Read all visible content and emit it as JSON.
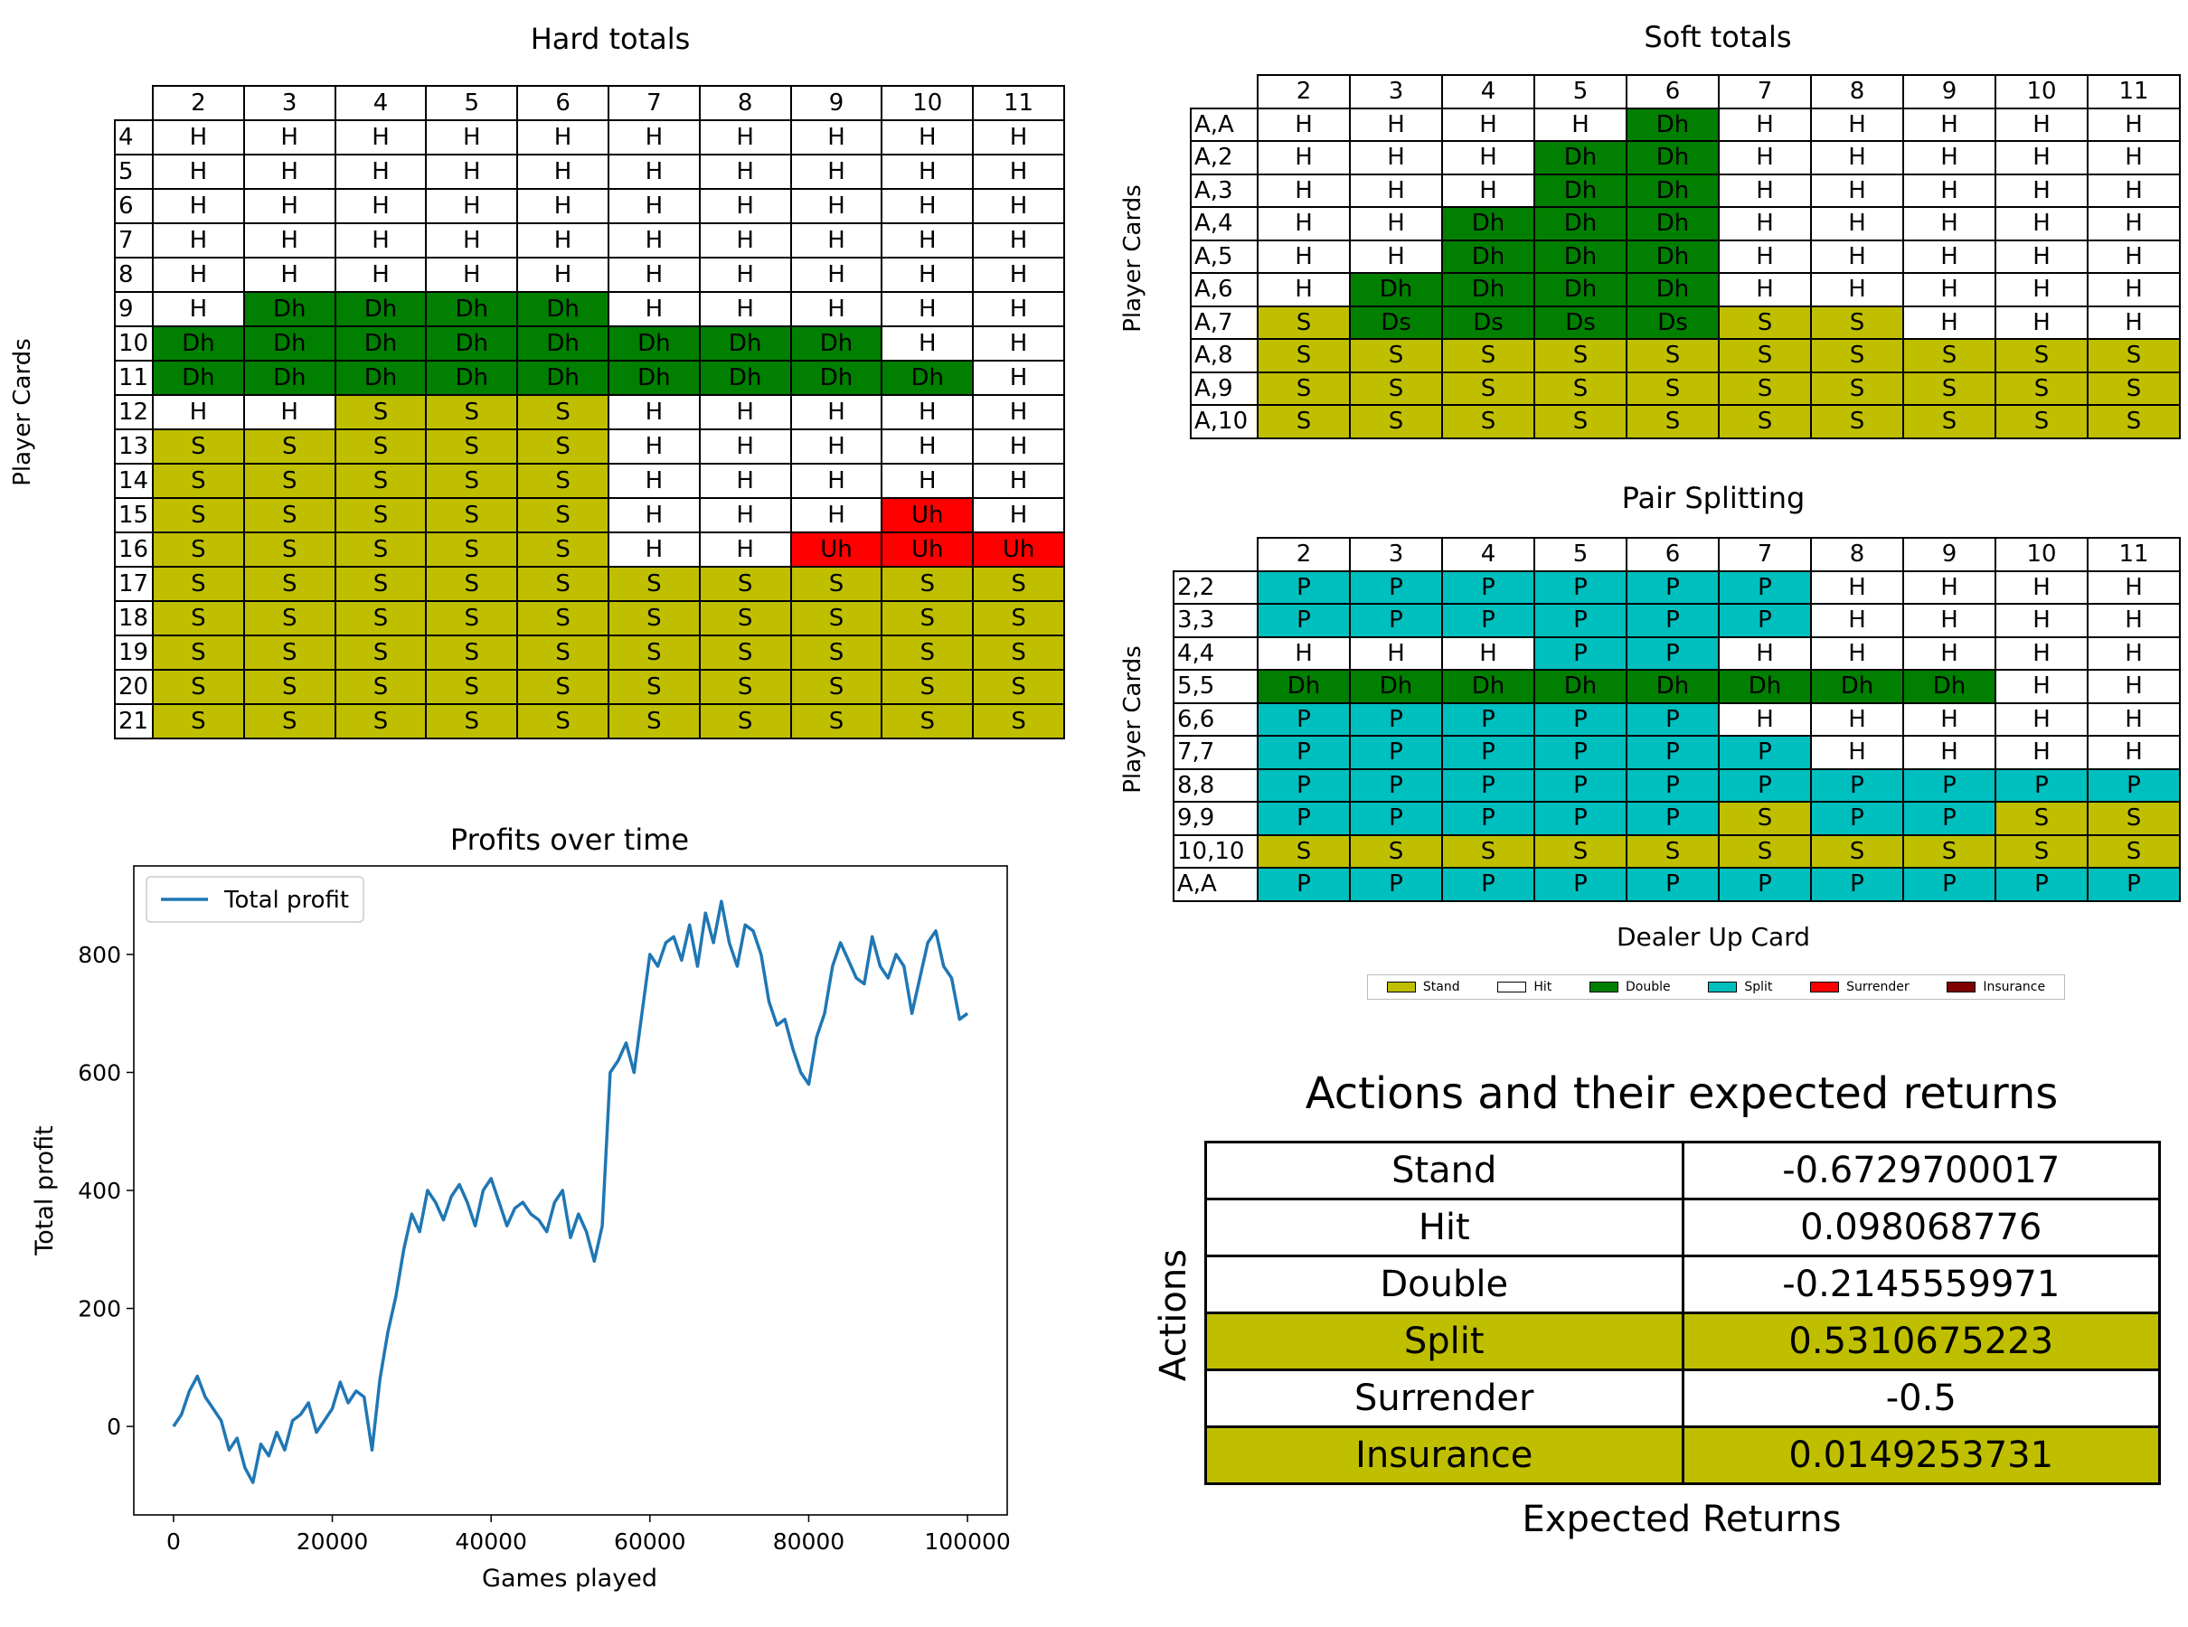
{
  "colors": {
    "S": "#bfbf00",
    "H": "#ffffff",
    "D": "#007f00",
    "P": "#00bfbf",
    "U": "#ff0000",
    "I": "#7f0000",
    "line": "#1f77b4"
  },
  "hard_totals": {
    "title": "Hard totals",
    "ylabel": "Player Cards",
    "columns": [
      "2",
      "3",
      "4",
      "5",
      "6",
      "7",
      "8",
      "9",
      "10",
      "11"
    ],
    "rows": [
      {
        "label": "4",
        "cells": [
          "H",
          "H",
          "H",
          "H",
          "H",
          "H",
          "H",
          "H",
          "H",
          "H"
        ]
      },
      {
        "label": "5",
        "cells": [
          "H",
          "H",
          "H",
          "H",
          "H",
          "H",
          "H",
          "H",
          "H",
          "H"
        ]
      },
      {
        "label": "6",
        "cells": [
          "H",
          "H",
          "H",
          "H",
          "H",
          "H",
          "H",
          "H",
          "H",
          "H"
        ]
      },
      {
        "label": "7",
        "cells": [
          "H",
          "H",
          "H",
          "H",
          "H",
          "H",
          "H",
          "H",
          "H",
          "H"
        ]
      },
      {
        "label": "8",
        "cells": [
          "H",
          "H",
          "H",
          "H",
          "H",
          "H",
          "H",
          "H",
          "H",
          "H"
        ]
      },
      {
        "label": "9",
        "cells": [
          "H",
          "Dh",
          "Dh",
          "Dh",
          "Dh",
          "H",
          "H",
          "H",
          "H",
          "H"
        ]
      },
      {
        "label": "10",
        "cells": [
          "Dh",
          "Dh",
          "Dh",
          "Dh",
          "Dh",
          "Dh",
          "Dh",
          "Dh",
          "H",
          "H"
        ]
      },
      {
        "label": "11",
        "cells": [
          "Dh",
          "Dh",
          "Dh",
          "Dh",
          "Dh",
          "Dh",
          "Dh",
          "Dh",
          "Dh",
          "H"
        ]
      },
      {
        "label": "12",
        "cells": [
          "H",
          "H",
          "S",
          "S",
          "S",
          "H",
          "H",
          "H",
          "H",
          "H"
        ]
      },
      {
        "label": "13",
        "cells": [
          "S",
          "S",
          "S",
          "S",
          "S",
          "H",
          "H",
          "H",
          "H",
          "H"
        ]
      },
      {
        "label": "14",
        "cells": [
          "S",
          "S",
          "S",
          "S",
          "S",
          "H",
          "H",
          "H",
          "H",
          "H"
        ]
      },
      {
        "label": "15",
        "cells": [
          "S",
          "S",
          "S",
          "S",
          "S",
          "H",
          "H",
          "H",
          "Uh",
          "H"
        ]
      },
      {
        "label": "16",
        "cells": [
          "S",
          "S",
          "S",
          "S",
          "S",
          "H",
          "H",
          "Uh",
          "Uh",
          "Uh"
        ]
      },
      {
        "label": "17",
        "cells": [
          "S",
          "S",
          "S",
          "S",
          "S",
          "S",
          "S",
          "S",
          "S",
          "S"
        ]
      },
      {
        "label": "18",
        "cells": [
          "S",
          "S",
          "S",
          "S",
          "S",
          "S",
          "S",
          "S",
          "S",
          "S"
        ]
      },
      {
        "label": "19",
        "cells": [
          "S",
          "S",
          "S",
          "S",
          "S",
          "S",
          "S",
          "S",
          "S",
          "S"
        ]
      },
      {
        "label": "20",
        "cells": [
          "S",
          "S",
          "S",
          "S",
          "S",
          "S",
          "S",
          "S",
          "S",
          "S"
        ]
      },
      {
        "label": "21",
        "cells": [
          "S",
          "S",
          "S",
          "S",
          "S",
          "S",
          "S",
          "S",
          "S",
          "S"
        ]
      }
    ]
  },
  "soft_totals": {
    "title": "Soft totals",
    "ylabel": "Player Cards",
    "columns": [
      "2",
      "3",
      "4",
      "5",
      "6",
      "7",
      "8",
      "9",
      "10",
      "11"
    ],
    "rows": [
      {
        "label": "A,A",
        "cells": [
          "H",
          "H",
          "H",
          "H",
          "Dh",
          "H",
          "H",
          "H",
          "H",
          "H"
        ]
      },
      {
        "label": "A,2",
        "cells": [
          "H",
          "H",
          "H",
          "Dh",
          "Dh",
          "H",
          "H",
          "H",
          "H",
          "H"
        ]
      },
      {
        "label": "A,3",
        "cells": [
          "H",
          "H",
          "H",
          "Dh",
          "Dh",
          "H",
          "H",
          "H",
          "H",
          "H"
        ]
      },
      {
        "label": "A,4",
        "cells": [
          "H",
          "H",
          "Dh",
          "Dh",
          "Dh",
          "H",
          "H",
          "H",
          "H",
          "H"
        ]
      },
      {
        "label": "A,5",
        "cells": [
          "H",
          "H",
          "Dh",
          "Dh",
          "Dh",
          "H",
          "H",
          "H",
          "H",
          "H"
        ]
      },
      {
        "label": "A,6",
        "cells": [
          "H",
          "Dh",
          "Dh",
          "Dh",
          "Dh",
          "H",
          "H",
          "H",
          "H",
          "H"
        ]
      },
      {
        "label": "A,7",
        "cells": [
          "S",
          "Ds",
          "Ds",
          "Ds",
          "Ds",
          "S",
          "S",
          "H",
          "H",
          "H"
        ]
      },
      {
        "label": "A,8",
        "cells": [
          "S",
          "S",
          "S",
          "S",
          "S",
          "S",
          "S",
          "S",
          "S",
          "S"
        ]
      },
      {
        "label": "A,9",
        "cells": [
          "S",
          "S",
          "S",
          "S",
          "S",
          "S",
          "S",
          "S",
          "S",
          "S"
        ]
      },
      {
        "label": "A,10",
        "cells": [
          "S",
          "S",
          "S",
          "S",
          "S",
          "S",
          "S",
          "S",
          "S",
          "S"
        ]
      }
    ]
  },
  "pair_splitting": {
    "title": "Pair Splitting",
    "ylabel": "Player Cards",
    "xlabel": "Dealer Up Card",
    "columns": [
      "2",
      "3",
      "4",
      "5",
      "6",
      "7",
      "8",
      "9",
      "10",
      "11"
    ],
    "rows": [
      {
        "label": "2,2",
        "cells": [
          "P",
          "P",
          "P",
          "P",
          "P",
          "P",
          "H",
          "H",
          "H",
          "H"
        ]
      },
      {
        "label": "3,3",
        "cells": [
          "P",
          "P",
          "P",
          "P",
          "P",
          "P",
          "H",
          "H",
          "H",
          "H"
        ]
      },
      {
        "label": "4,4",
        "cells": [
          "H",
          "H",
          "H",
          "P",
          "P",
          "H",
          "H",
          "H",
          "H",
          "H"
        ]
      },
      {
        "label": "5,5",
        "cells": [
          "Dh",
          "Dh",
          "Dh",
          "Dh",
          "Dh",
          "Dh",
          "Dh",
          "Dh",
          "H",
          "H"
        ]
      },
      {
        "label": "6,6",
        "cells": [
          "P",
          "P",
          "P",
          "P",
          "P",
          "H",
          "H",
          "H",
          "H",
          "H"
        ]
      },
      {
        "label": "7,7",
        "cells": [
          "P",
          "P",
          "P",
          "P",
          "P",
          "P",
          "H",
          "H",
          "H",
          "H"
        ]
      },
      {
        "label": "8,8",
        "cells": [
          "P",
          "P",
          "P",
          "P",
          "P",
          "P",
          "P",
          "P",
          "P",
          "P"
        ]
      },
      {
        "label": "9,9",
        "cells": [
          "P",
          "P",
          "P",
          "P",
          "P",
          "S",
          "P",
          "P",
          "S",
          "S"
        ]
      },
      {
        "label": "10,10",
        "cells": [
          "S",
          "S",
          "S",
          "S",
          "S",
          "S",
          "S",
          "S",
          "S",
          "S"
        ]
      },
      {
        "label": "A,A",
        "cells": [
          "P",
          "P",
          "P",
          "P",
          "P",
          "P",
          "P",
          "P",
          "P",
          "P"
        ]
      }
    ]
  },
  "legend": [
    {
      "label": "Stand",
      "color": "#bfbf00"
    },
    {
      "label": "Hit",
      "color": "#ffffff"
    },
    {
      "label": "Double",
      "color": "#007f00"
    },
    {
      "label": "Split",
      "color": "#00bfbf"
    },
    {
      "label": "Surrender",
      "color": "#ff0000"
    },
    {
      "label": "Insurance",
      "color": "#7f0000"
    }
  ],
  "expected_returns": {
    "title": "Actions and their expected returns",
    "ylabel": "Actions",
    "xlabel": "Expected Returns",
    "rows": [
      {
        "action": "Stand",
        "value": "-0.6729700017",
        "highlight": false
      },
      {
        "action": "Hit",
        "value": "0.098068776",
        "highlight": false
      },
      {
        "action": "Double",
        "value": "-0.2145559971",
        "highlight": false
      },
      {
        "action": "Split",
        "value": "0.5310675223",
        "highlight": true
      },
      {
        "action": "Surrender",
        "value": "-0.5",
        "highlight": false
      },
      {
        "action": "Insurance",
        "value": "0.0149253731",
        "highlight": true
      }
    ]
  },
  "chart_data": {
    "type": "line",
    "title": "Profits over time",
    "xlabel": "Games played",
    "ylabel": "Total profit",
    "xlim": [
      -5000,
      105000
    ],
    "ylim": [
      -150,
      950
    ],
    "xticks": [
      0,
      20000,
      40000,
      60000,
      80000,
      100000
    ],
    "yticks": [
      0,
      200,
      400,
      600,
      800
    ],
    "legend_position": "upper-left",
    "series": [
      {
        "name": "Total profit",
        "x": [
          0,
          1000,
          2000,
          3000,
          4000,
          5000,
          6000,
          7000,
          8000,
          9000,
          10000,
          11000,
          12000,
          13000,
          14000,
          15000,
          16000,
          17000,
          18000,
          19000,
          20000,
          21000,
          22000,
          23000,
          24000,
          25000,
          26000,
          27000,
          28000,
          29000,
          30000,
          31000,
          32000,
          33000,
          34000,
          35000,
          36000,
          37000,
          38000,
          39000,
          40000,
          41000,
          42000,
          43000,
          44000,
          45000,
          46000,
          47000,
          48000,
          49000,
          50000,
          51000,
          52000,
          53000,
          54000,
          55000,
          56000,
          57000,
          58000,
          59000,
          60000,
          61000,
          62000,
          63000,
          64000,
          65000,
          66000,
          67000,
          68000,
          69000,
          70000,
          71000,
          72000,
          73000,
          74000,
          75000,
          76000,
          77000,
          78000,
          79000,
          80000,
          81000,
          82000,
          83000,
          84000,
          85000,
          86000,
          87000,
          88000,
          89000,
          90000,
          91000,
          92000,
          93000,
          94000,
          95000,
          96000,
          97000,
          98000,
          99000,
          100000
        ],
        "y": [
          0,
          20,
          60,
          85,
          50,
          30,
          10,
          -40,
          -20,
          -70,
          -95,
          -30,
          -50,
          -10,
          -40,
          10,
          20,
          40,
          -10,
          10,
          30,
          75,
          40,
          60,
          50,
          -40,
          80,
          160,
          220,
          300,
          360,
          330,
          400,
          380,
          350,
          390,
          410,
          380,
          340,
          400,
          420,
          380,
          340,
          370,
          380,
          360,
          350,
          330,
          380,
          400,
          320,
          360,
          330,
          280,
          340,
          600,
          620,
          650,
          600,
          700,
          800,
          780,
          820,
          830,
          790,
          850,
          780,
          870,
          820,
          890,
          820,
          780,
          850,
          840,
          800,
          720,
          680,
          690,
          640,
          600,
          580,
          660,
          700,
          780,
          820,
          790,
          760,
          750,
          830,
          780,
          760,
          800,
          780,
          700,
          760,
          820,
          840,
          780,
          760,
          690,
          700
        ]
      }
    ]
  }
}
